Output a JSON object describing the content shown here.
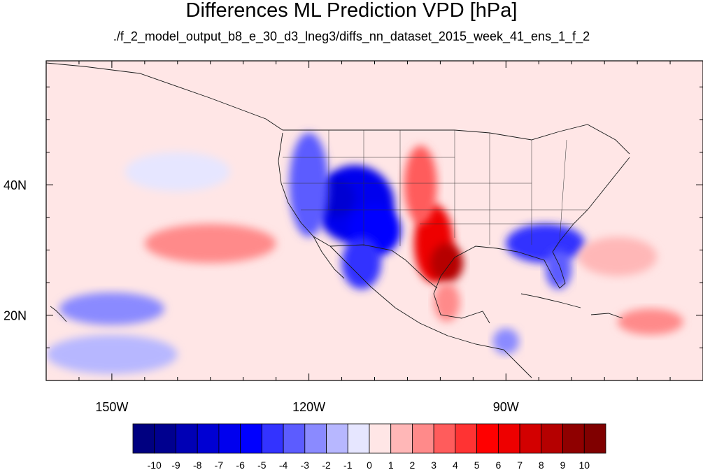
{
  "title": "Differences ML Prediction VPD [hPa]",
  "subtitle": "./f_2_model_output_b8_e_30_d3_lneg3/diffs_nn_dataset_2015_week_41_ens_1_f_2",
  "map": {
    "lon_range": [
      -160,
      -60
    ],
    "lat_range": [
      10,
      59
    ],
    "x_ticks": [
      {
        "lon": -150,
        "label": "150W"
      },
      {
        "lon": -120,
        "label": "120W"
      },
      {
        "lon": -90,
        "label": "90W"
      }
    ],
    "y_ticks": [
      {
        "lat": 40,
        "label": "40N"
      },
      {
        "lat": 20,
        "label": "20N"
      }
    ],
    "background_value": 0.5
  },
  "colorbar": {
    "labels": [
      "-10",
      "-9",
      "-8",
      "-7",
      "-6",
      "-5",
      "-4",
      "-3",
      "-2",
      "-1",
      "0",
      "1",
      "2",
      "3",
      "4",
      "5",
      "6",
      "7",
      "8",
      "9",
      "10"
    ],
    "colors": [
      "#000080",
      "#00008f",
      "#0000b5",
      "#0000d3",
      "#0000ee",
      "#0000ff",
      "#3333ff",
      "#5c5cff",
      "#8a8aff",
      "#b7b7ff",
      "#e6e6ff",
      "#ffe6e6",
      "#ffb7b7",
      "#ff8a8a",
      "#ff5c5c",
      "#ff3333",
      "#ff0000",
      "#ee0000",
      "#d30000",
      "#b50000",
      "#8f0000",
      "#800000"
    ]
  },
  "regions": [
    {
      "name": "great-basin-dry-bias",
      "lon": -113,
      "lat": 37,
      "rlon": 6,
      "rlat": 6,
      "value": -7
    },
    {
      "name": "nevada-core",
      "lon": -116,
      "lat": 38,
      "rlon": 3,
      "rlat": 3,
      "value": -8
    },
    {
      "name": "arizona-low",
      "lon": -110,
      "lat": 33,
      "rlon": 4,
      "rlat": 4,
      "value": -6
    },
    {
      "name": "west-coast-fringe",
      "lon": -120,
      "lat": 40,
      "rlon": 3,
      "rlat": 8,
      "value": -4
    },
    {
      "name": "baja-low",
      "lon": -112,
      "lat": 28,
      "rlon": 3,
      "rlat": 4,
      "value": -5
    },
    {
      "name": "southern-plains-high",
      "lon": -101,
      "lat": 31,
      "rlon": 3,
      "rlat": 6,
      "value": 6
    },
    {
      "name": "texas-core",
      "lon": -99,
      "lat": 28,
      "rlon": 2.5,
      "rlat": 3,
      "value": 8
    },
    {
      "name": "high-plains-band",
      "lon": -103,
      "lat": 40,
      "rlon": 2.5,
      "rlat": 6,
      "value": 3
    },
    {
      "name": "southeast-low",
      "lon": -84,
      "lat": 31,
      "rlon": 6,
      "rlat": 3,
      "value": -5
    },
    {
      "name": "florida-low",
      "lon": -82,
      "lat": 27,
      "rlon": 2,
      "rlat": 3,
      "value": -4
    },
    {
      "name": "pacific-warm",
      "lon": -135,
      "lat": 31,
      "rlon": 10,
      "rlat": 3,
      "value": 2
    },
    {
      "name": "hawaii-cool",
      "lon": -150,
      "lat": 21,
      "rlon": 8,
      "rlat": 2.5,
      "value": -3
    },
    {
      "name": "mexico-high",
      "lon": -99,
      "lat": 22,
      "rlon": 2,
      "rlat": 3,
      "value": 2
    },
    {
      "name": "central-america-low",
      "lon": -90,
      "lat": 16,
      "rlon": 2,
      "rlat": 2,
      "value": -3
    },
    {
      "name": "atlantic-warm",
      "lon": -73,
      "lat": 29,
      "rlon": 6,
      "rlat": 3,
      "value": 1
    },
    {
      "name": "caribbean-warm",
      "lon": -68,
      "lat": 19,
      "rlon": 5,
      "rlat": 2,
      "value": 2
    },
    {
      "name": "nw-pacific-cool",
      "lon": -140,
      "lat": 42,
      "rlon": 8,
      "rlat": 3,
      "value": -1
    },
    {
      "name": "southwest-pacific-cool",
      "lon": -150,
      "lat": 14,
      "rlon": 10,
      "rlat": 3,
      "value": -2
    }
  ]
}
